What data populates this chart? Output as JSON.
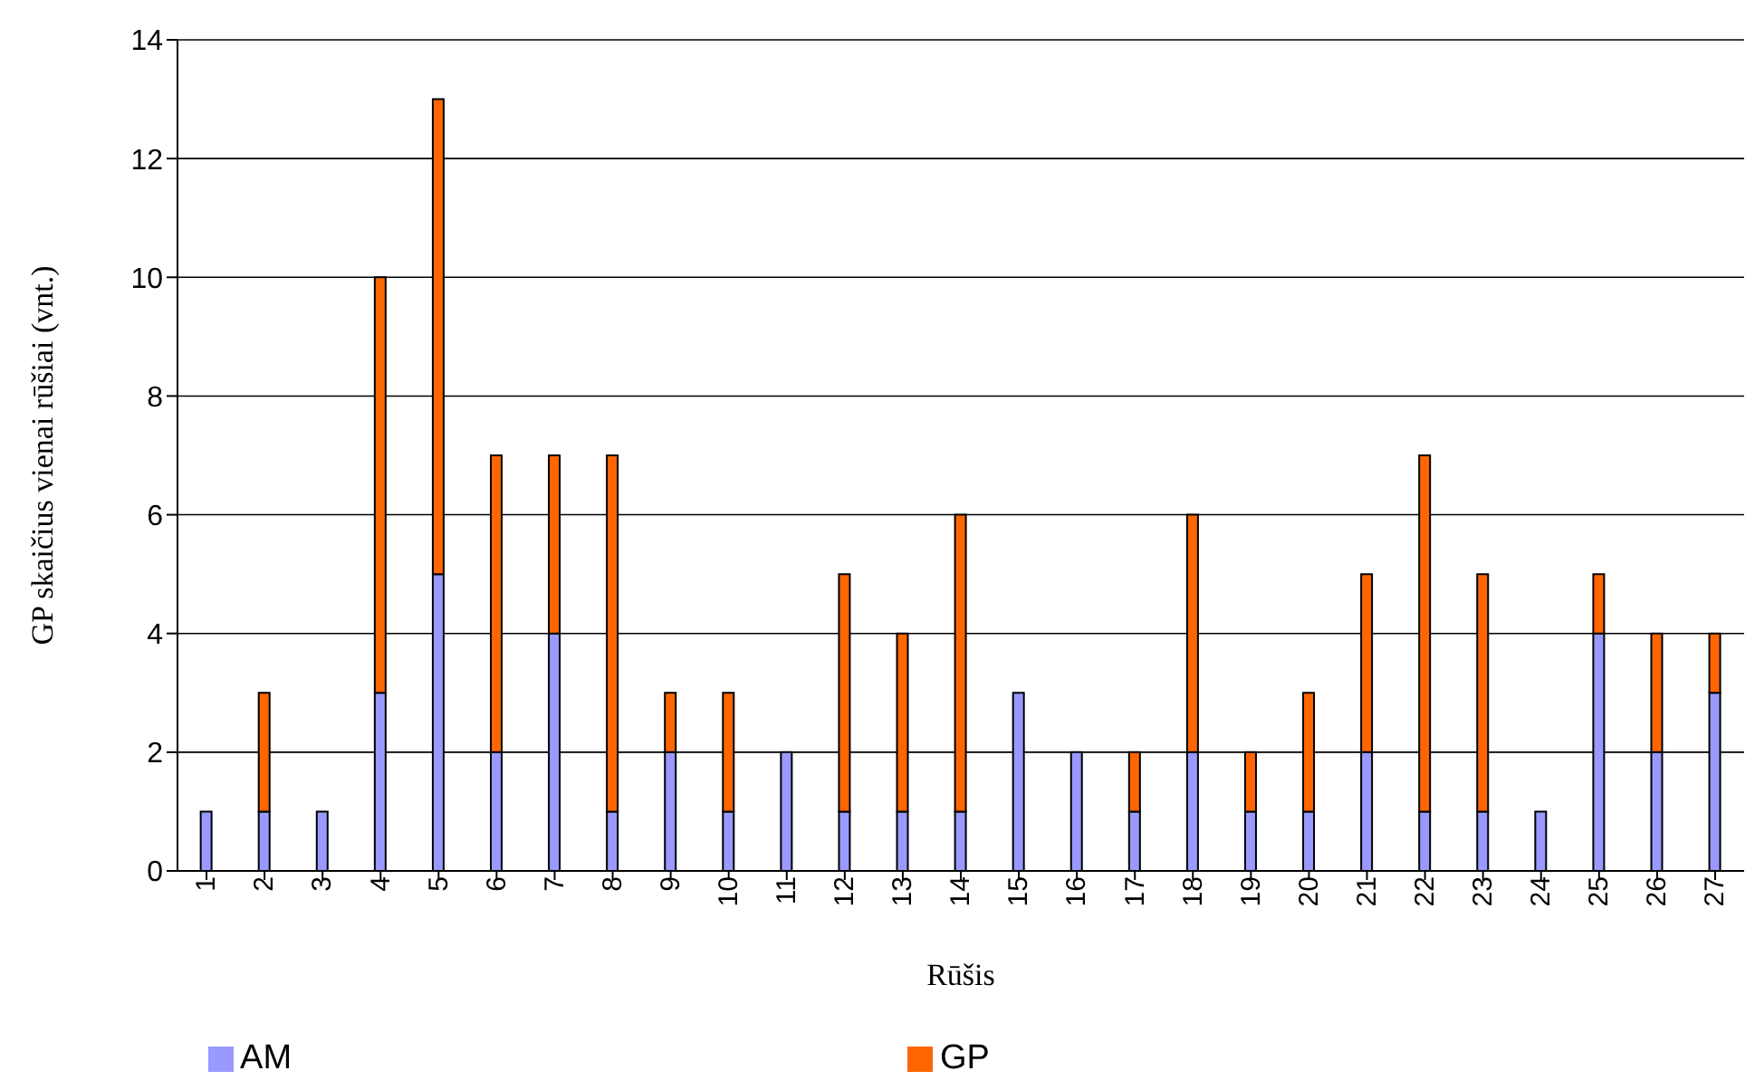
{
  "chart_data": {
    "type": "bar",
    "stacked": true,
    "xlabel": "Rūšis",
    "ylabel": "GP skaičius vienai rūšiai (vnt.)",
    "categories": [
      "1",
      "2",
      "3",
      "4",
      "5",
      "6",
      "7",
      "8",
      "9",
      "10",
      "11",
      "12",
      "13",
      "14",
      "15",
      "16",
      "17",
      "18",
      "19",
      "20",
      "21",
      "22",
      "23",
      "24",
      "25",
      "26",
      "27"
    ],
    "series": [
      {
        "name": "AM",
        "color": "#9999ff",
        "values": [
          1,
          1,
          1,
          3,
          5,
          2,
          4,
          1,
          2,
          1,
          2,
          1,
          1,
          1,
          3,
          2,
          1,
          2,
          1,
          1,
          2,
          1,
          1,
          1,
          4,
          2,
          3
        ]
      },
      {
        "name": "GP",
        "color": "#ff6600",
        "values": [
          0,
          2,
          0,
          7,
          8,
          5,
          3,
          6,
          1,
          2,
          0,
          4,
          3,
          5,
          0,
          0,
          1,
          4,
          1,
          2,
          3,
          6,
          4,
          0,
          1,
          2,
          1
        ]
      }
    ],
    "ylim": [
      0,
      14
    ],
    "yticks": [
      0,
      2,
      4,
      6,
      8,
      10,
      12,
      14
    ],
    "grid": "y",
    "legend": "bottom"
  }
}
